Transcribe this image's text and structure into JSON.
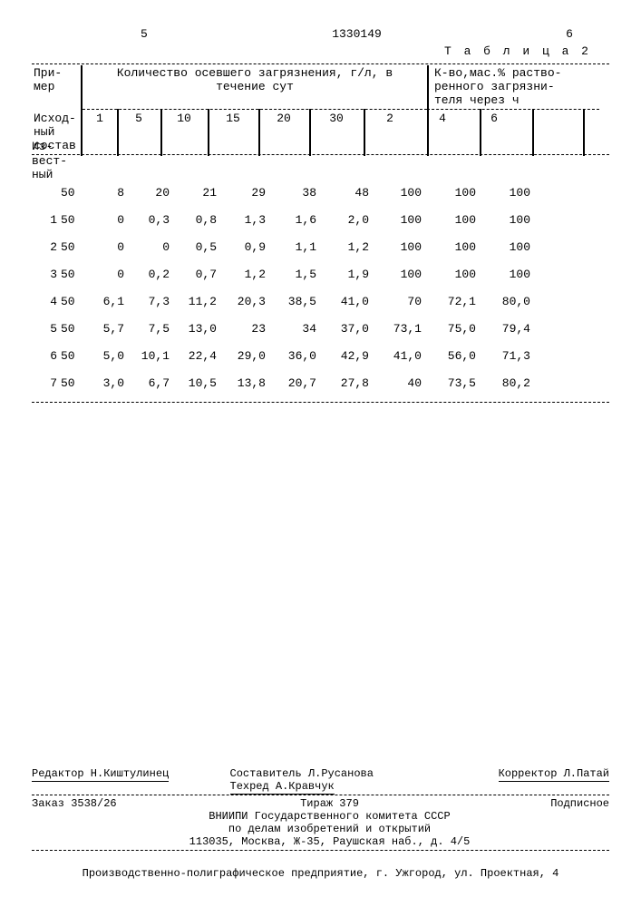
{
  "page": {
    "col_left": "5",
    "doc_number": "1330149",
    "col_right": "6",
    "table_label": "Т а б л и ц а 2"
  },
  "headers": {
    "primer": "При-\nмер",
    "group1": "Количество осевшего загрязнения, г/л, в\nтечение сут",
    "group2": "К-во,мас.% раство-\nренного загрязни-\nтеля через ч",
    "ish": "Исход-\nный\nсостав",
    "c1": "1",
    "c5": "5",
    "c10": "10",
    "c15": "15",
    "c20": "20",
    "c30": "30",
    "k2": "2",
    "k4": "4",
    "k6": "6",
    "izvest": "Из-\nвест-\nный"
  },
  "rows": [
    {
      "label": "",
      "ish": "50",
      "v1": "8",
      "v5": "20",
      "v10": "21",
      "v15": "29",
      "v20": "38",
      "v30": "48",
      "k2": "100",
      "k4": "100",
      "k6": "100"
    },
    {
      "label": "1",
      "ish": "50",
      "v1": "0",
      "v5": "0,3",
      "v10": "0,8",
      "v15": "1,3",
      "v20": "1,6",
      "v30": "2,0",
      "k2": "100",
      "k4": "100",
      "k6": "100"
    },
    {
      "label": "2",
      "ish": "50",
      "v1": "0",
      "v5": "0",
      "v10": "0,5",
      "v15": "0,9",
      "v20": "1,1",
      "v30": "1,2",
      "k2": "100",
      "k4": "100",
      "k6": "100"
    },
    {
      "label": "3",
      "ish": "50",
      "v1": "0",
      "v5": "0,2",
      "v10": "0,7",
      "v15": "1,2",
      "v20": "1,5",
      "v30": "1,9",
      "k2": "100",
      "k4": "100",
      "k6": "100"
    },
    {
      "label": "4",
      "ish": "50",
      "v1": "6,1",
      "v5": "7,3",
      "v10": "11,2",
      "v15": "20,3",
      "v20": "38,5",
      "v30": "41,0",
      "k2": "70",
      "k4": "72,1",
      "k6": "80,0"
    },
    {
      "label": "5",
      "ish": "50",
      "v1": "5,7",
      "v5": "7,5",
      "v10": "13,0",
      "v15": "23",
      "v20": "34",
      "v30": "37,0",
      "k2": "73,1",
      "k4": "75,0",
      "k6": "79,4"
    },
    {
      "label": "6",
      "ish": "50",
      "v1": "5,0",
      "v5": "10,1",
      "v10": "22,4",
      "v15": "29,0",
      "v20": "36,0",
      "v30": "42,9",
      "k2": "41,0",
      "k4": "56,0",
      "k6": "71,3"
    },
    {
      "label": "7",
      "ish": "50",
      "v1": "3,0",
      "v5": "6,7",
      "v10": "10,5",
      "v15": "13,8",
      "v20": "20,7",
      "v30": "27,8",
      "k2": "40",
      "k4": "73,5",
      "k6": "80,2"
    }
  ],
  "footer": {
    "editor": "Редактор Н.Киштулинец",
    "compiler": "Составитель  Л.Русанова",
    "tehred": "Техред А.Кравчук",
    "corrector": "Корректор Л.Патай",
    "order": "Заказ 3538/26",
    "tirazh": "Тираж  379",
    "podpis": "Подписное",
    "org1": "ВНИИПИ Государственного комитета СССР",
    "org2": "по делам изобретений и открытий",
    "addr": "113035, Москва, Ж-35, Раушская наб., д. 4/5",
    "print": "Производственно-полиграфическое предприятие, г. Ужгород, ул. Проектная, 4"
  }
}
